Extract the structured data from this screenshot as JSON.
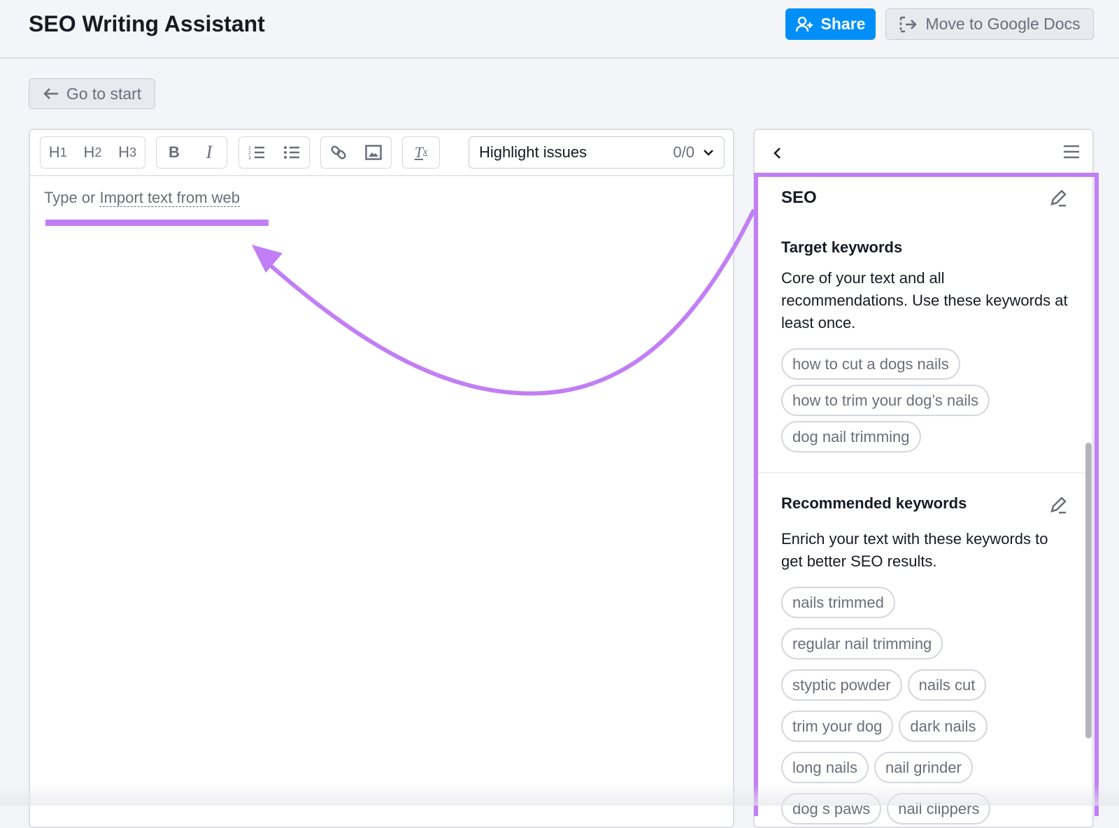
{
  "header": {
    "title": "SEO Writing Assistant",
    "share_label": "Share",
    "gdocs_label": "Move to Google Docs"
  },
  "nav": {
    "go_to_start": "Go to start"
  },
  "toolbar": {
    "h1": "H1",
    "h2": "H2",
    "h3": "H3",
    "bold": "B",
    "italic": "I",
    "highlight_label": "Highlight issues",
    "highlight_count": "0/0"
  },
  "editor": {
    "placeholder_prefix": "Type or ",
    "placeholder_link": "Import text from web"
  },
  "sidebar": {
    "section_title": "SEO",
    "target": {
      "title": "Target keywords",
      "description": "Core of your text and all recommendations. Use these keywords at least once.",
      "keywords": [
        "how to cut a dogs nails",
        "how to trim your dog’s nails",
        "dog nail trimming"
      ]
    },
    "recommended": {
      "title": "Recommended keywords",
      "description": "Enrich your text with these keywords to get better SEO results.",
      "keywords": [
        "nails trimmed",
        "regular nail trimming",
        "styptic powder",
        "nails cut",
        "trim your dog",
        "dark nails",
        "long nails",
        "nail grinder",
        "dog s paws",
        "nail clippers"
      ]
    }
  },
  "colors": {
    "accent": "#008ff8",
    "annotation": "#c17ef5"
  }
}
